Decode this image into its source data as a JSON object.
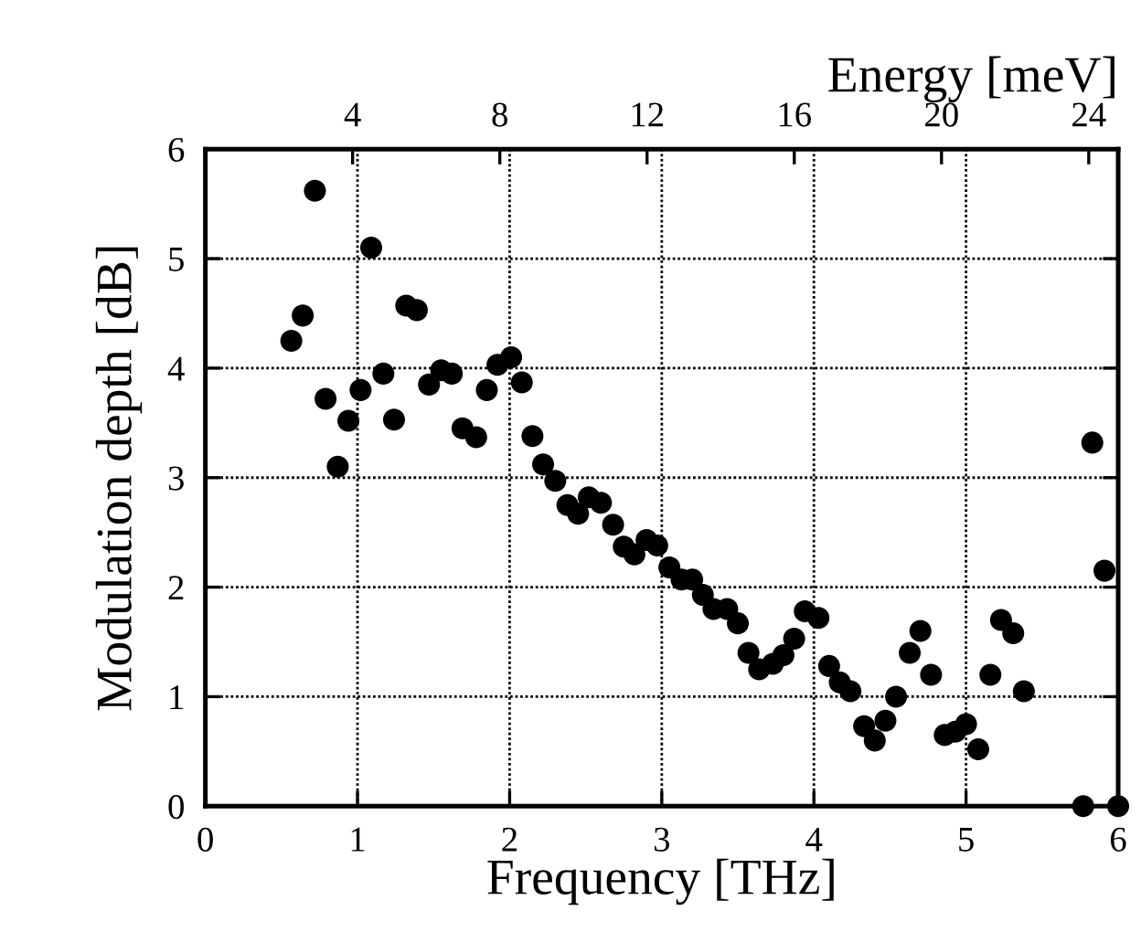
{
  "chart_data": {
    "type": "scatter",
    "xlabel": "Frequency [THz]",
    "ylabel": "Modulation depth [dB]",
    "x2label": "Energy [meV]",
    "xlim": [
      0,
      6
    ],
    "xticks": [
      0,
      1,
      2,
      3,
      4,
      5,
      6
    ],
    "ylim": [
      0,
      6
    ],
    "yticks": [
      0,
      1,
      2,
      3,
      4,
      5,
      6
    ],
    "x2lim": [
      0,
      24.8
    ],
    "x2ticks": [
      4,
      8,
      12,
      16,
      20,
      24
    ],
    "grid": true,
    "marker": "circle",
    "legend": false,
    "series": [
      {
        "color": "#000000",
        "x": [
          0.565,
          0.64,
          0.72,
          0.79,
          0.87,
          0.94,
          1.02,
          1.09,
          1.17,
          1.24,
          1.32,
          1.39,
          1.47,
          1.55,
          1.62,
          1.69,
          1.78,
          1.85,
          1.92,
          2.01,
          2.08,
          2.15,
          2.22,
          2.3,
          2.38,
          2.45,
          2.52,
          2.6,
          2.68,
          2.75,
          2.82,
          2.9,
          2.97,
          3.05,
          3.13,
          3.2,
          3.27,
          3.34,
          3.43,
          3.5,
          3.57,
          3.64,
          3.73,
          3.8,
          3.87,
          3.94,
          4.03,
          4.1,
          4.17,
          4.24,
          4.33,
          4.4,
          4.47,
          4.54,
          4.63,
          4.7,
          4.77,
          4.86,
          4.93,
          5.0,
          5.08,
          5.16,
          5.23,
          5.31,
          5.38,
          5.77,
          5.83,
          5.91,
          6.0
        ],
        "values": [
          4.25,
          4.48,
          5.62,
          3.72,
          3.1,
          3.52,
          3.8,
          5.1,
          3.95,
          3.53,
          4.57,
          4.53,
          3.85,
          3.98,
          3.95,
          3.45,
          3.37,
          3.8,
          4.03,
          4.1,
          3.87,
          3.38,
          3.12,
          2.97,
          2.75,
          2.67,
          2.82,
          2.77,
          2.57,
          2.37,
          2.3,
          2.43,
          2.38,
          2.18,
          2.07,
          2.07,
          1.93,
          1.8,
          1.8,
          1.67,
          1.4,
          1.25,
          1.3,
          1.38,
          1.53,
          1.78,
          1.72,
          1.28,
          1.13,
          1.05,
          0.73,
          0.6,
          0.78,
          1.0,
          1.4,
          1.6,
          1.2,
          0.65,
          0.68,
          0.75,
          0.52,
          1.2,
          1.7,
          1.58,
          1.05,
          0,
          3.32,
          2.15,
          0
        ]
      }
    ]
  }
}
